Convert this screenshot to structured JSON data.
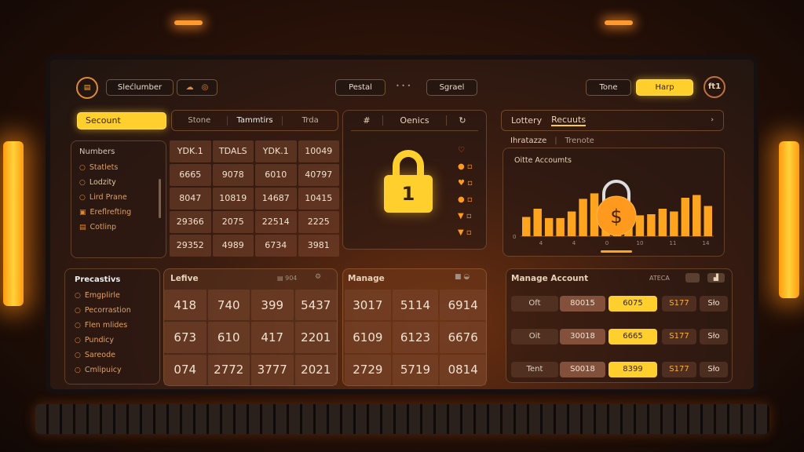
{
  "header": {
    "logo_icon": "wallet-logo-icon",
    "search_label": "Slećlumber",
    "toggle_icons": [
      "cloud-icon",
      "circle-icon"
    ],
    "center_buttons": [
      "Pestal",
      "Sgrael"
    ],
    "more_label": "• • •",
    "tone_label": "Tone",
    "help_label": "Harp",
    "avatar_label": "ft1"
  },
  "left_nav": {
    "active_label": "Secount",
    "tabs": [
      "Stone",
      "Tammtirs",
      "Trda"
    ],
    "tab_arrow": ">",
    "list_title": "Numbers",
    "items": [
      "Statlets",
      "Lodzity",
      "Lird Prane",
      "Ereflrefting",
      "Cotlinp"
    ]
  },
  "top_table": {
    "rows": [
      [
        "YDK.1",
        "TDALS",
        "YDK.1",
        "10049"
      ],
      [
        "6665",
        "9078",
        "6010",
        "40797"
      ],
      [
        "8047",
        "10819",
        "14687",
        "10415"
      ],
      [
        "29366",
        "2075",
        "22514",
        "2225"
      ],
      [
        "29352",
        "4989",
        "6734",
        "3981"
      ]
    ]
  },
  "devices": {
    "tabs": [
      "#",
      "Oenics",
      "↻"
    ],
    "lock_digit": "1",
    "status_icons": [
      "heart-icon",
      "coin-icon",
      "heart-icon",
      "coin-icon",
      "shield-icon",
      "shield-icon"
    ],
    "accent": "#ffcf2e"
  },
  "lottery": {
    "tabs": [
      "Lottery",
      "Recuuts"
    ],
    "active_tab": "Recuuts",
    "subtabs": [
      "Ihratazze",
      "Trenote"
    ],
    "expand_icon": "expand-icon",
    "chart_title": "Oitte Accoumts"
  },
  "chart_data": {
    "type": "bar",
    "title": "Oitte Accoumts",
    "values": [
      35,
      50,
      33,
      33,
      45,
      68,
      78,
      55,
      45,
      40,
      38,
      40,
      50,
      45,
      70,
      75,
      55
    ],
    "xtick_labels": [
      "4",
      "4",
      "0",
      "10",
      "11",
      "14"
    ],
    "ytick_labels": [
      "0"
    ],
    "color": "#ffa41e",
    "center_icon": "dollar-coin-lock-icon"
  },
  "preferences": {
    "title": "Precastivs",
    "items": [
      "Emgplirle",
      "Pecorrastion",
      "Flen mlides",
      "Pundicy",
      "Sareode",
      "Cmlipuicy"
    ]
  },
  "lefive": {
    "title": "Lefive",
    "badge": "▤ 904",
    "rows": [
      [
        "418",
        "740",
        "399",
        "5437"
      ],
      [
        "673",
        "610",
        "417",
        "2201"
      ],
      [
        "074",
        "2772",
        "3777",
        "2021"
      ]
    ]
  },
  "manage": {
    "title": "Manage",
    "rows": [
      [
        "3017",
        "5114",
        "6914"
      ],
      [
        "6109",
        "6123",
        "6676"
      ],
      [
        "2729",
        "5719",
        "0814"
      ]
    ]
  },
  "manage_account": {
    "title": "Manage Account",
    "tag": "ATECA",
    "rows": [
      {
        "label": "Oft",
        "a": "80015",
        "b": "6075",
        "c": "S177",
        "d": "Sło"
      },
      {
        "label": "Oit",
        "a": "30018",
        "b": "6665",
        "c": "S177",
        "d": "Sło"
      },
      {
        "label": "Tent",
        "a": "S0018",
        "b": "8399",
        "c": "S177",
        "d": "Sło"
      }
    ]
  }
}
